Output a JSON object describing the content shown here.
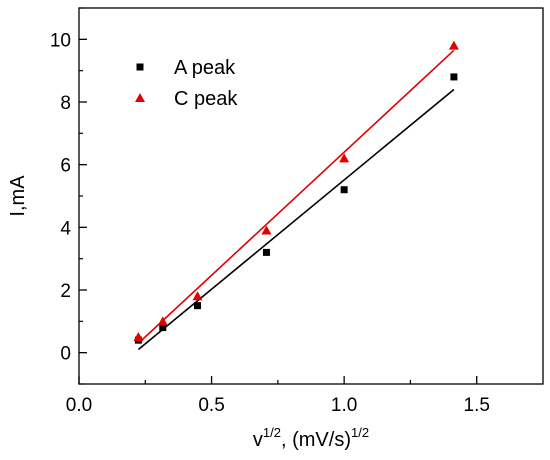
{
  "chart_data": {
    "type": "scatter",
    "xlabel": "v",
    "xlabel_sup1": "1/2",
    "xlabel_mid": ", (mV/s)",
    "xlabel_sup2": "1/2",
    "ylabel": "I,mA",
    "xlim": [
      0.0,
      1.75
    ],
    "ylim": [
      -1.0,
      11.0
    ],
    "xticks": [
      0.0,
      0.5,
      1.0,
      1.5
    ],
    "xtick_labels": [
      "0.0",
      "0.5",
      "1.0",
      "1.5"
    ],
    "yticks": [
      0,
      2,
      4,
      6,
      8,
      10
    ],
    "ytick_labels": [
      "0",
      "2",
      "4",
      "6",
      "8",
      "10"
    ],
    "grid": false,
    "legend_position": "top-left",
    "series": [
      {
        "name": "A peak",
        "color": "#000000",
        "marker": "square",
        "x": [
          0.224,
          0.316,
          0.447,
          0.707,
          1.0,
          1.414
        ],
        "y": [
          0.4,
          0.8,
          1.5,
          3.2,
          5.2,
          8.8
        ],
        "fit": {
          "x": [
            0.224,
            1.414
          ],
          "y": [
            0.1,
            8.4
          ]
        }
      },
      {
        "name": "C peak",
        "color": "#e00000",
        "marker": "triangle",
        "x": [
          0.224,
          0.316,
          0.447,
          0.707,
          1.0,
          1.414
        ],
        "y": [
          0.5,
          1.0,
          1.8,
          3.9,
          6.2,
          9.8
        ],
        "fit": {
          "x": [
            0.224,
            1.414
          ],
          "y": [
            0.3,
            9.65
          ]
        }
      }
    ]
  }
}
